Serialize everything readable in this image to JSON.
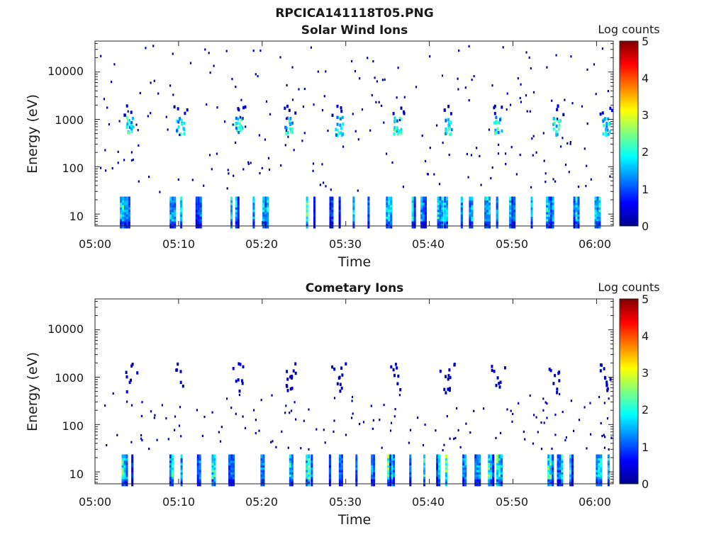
{
  "figure_title": "RPCICA141118T05.PNG",
  "chart_data": [
    {
      "type": "heatmap",
      "title": "Solar Wind Ions",
      "xlabel": "Time",
      "ylabel": "Energy (eV)",
      "y_scale": "log",
      "ylim": [
        5.6,
        45000
      ],
      "y_ticks": [
        10,
        100,
        1000,
        10000
      ],
      "y_tick_labels": [
        "10",
        "100",
        "1000",
        "10000"
      ],
      "x_range": [
        "05:00",
        "06:02"
      ],
      "x_tick_labels": [
        "05:00",
        "05:10",
        "05:20",
        "05:30",
        "05:40",
        "05:50",
        "06:00"
      ],
      "colorbar": {
        "label": "Log counts",
        "range": [
          0,
          5
        ],
        "tick_labels": [
          "0",
          "1",
          "2",
          "3",
          "4",
          "5"
        ],
        "colormap": "jet"
      },
      "features": {
        "beam_energy_eV": [
          500,
          1200
        ],
        "beam_log_counts_peak": 2.3,
        "beam_times": [
          "05:04",
          "05:10",
          "05:17",
          "05:23",
          "05:29",
          "05:36",
          "05:42",
          "05:48",
          "05:55",
          "06:01"
        ],
        "low_energy_eV": [
          6,
          25
        ],
        "low_energy_log_counts_peak": 2.6,
        "low_energy_bursts_per_beam_period": 3,
        "sparse_background": "single-count pixels scattered above 30 eV"
      }
    },
    {
      "type": "heatmap",
      "title": "Cometary Ions",
      "xlabel": "Time",
      "ylabel": "Energy (eV)",
      "y_scale": "log",
      "ylim": [
        5.6,
        45000
      ],
      "y_ticks": [
        10,
        100,
        1000,
        10000
      ],
      "y_tick_labels": [
        "10",
        "100",
        "1000",
        "10000"
      ],
      "x_range": [
        "05:00",
        "06:02"
      ],
      "x_tick_labels": [
        "05:00",
        "05:10",
        "05:20",
        "05:30",
        "05:40",
        "05:50",
        "06:00"
      ],
      "colorbar": {
        "label": "Log counts",
        "range": [
          0,
          5
        ],
        "tick_labels": [
          "0",
          "1",
          "2",
          "3",
          "4",
          "5"
        ],
        "colormap": "jet"
      },
      "features": {
        "beam_energy_eV": [
          500,
          1200
        ],
        "beam_log_counts_peak": 0.4,
        "beam_times": [
          "05:04",
          "05:10",
          "05:17",
          "05:23",
          "05:29",
          "05:36",
          "05:42",
          "05:48",
          "05:55",
          "06:01"
        ],
        "low_energy_eV": [
          6,
          25
        ],
        "low_energy_log_counts_peak": 2.8,
        "low_energy_bursts_per_beam_period": 3,
        "sparse_background": "single-count pixels scattered between 30 and 500 eV"
      }
    }
  ]
}
